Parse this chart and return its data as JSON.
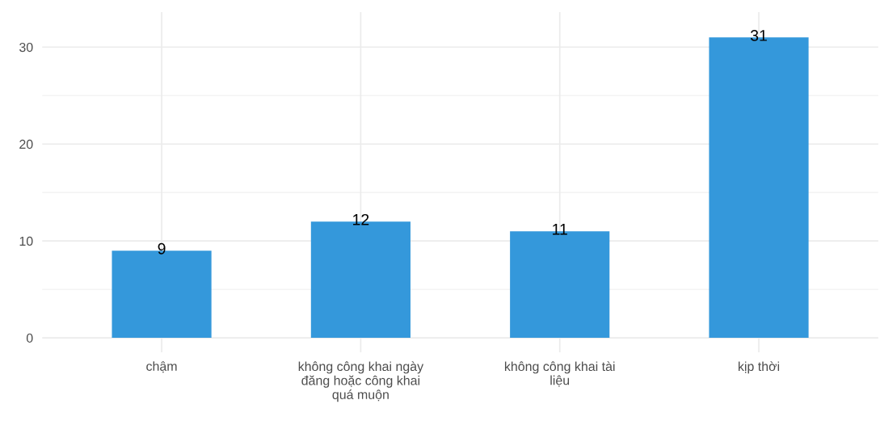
{
  "chart_data": {
    "type": "bar",
    "categories": [
      "chậm",
      "không công khai ngày đăng hoặc công khai quá muộn",
      "không công khai tài liệu",
      "kịp thời"
    ],
    "values": [
      9,
      12,
      11,
      31
    ],
    "color": "#3498db",
    "ylim": [
      -1.5,
      33.6
    ],
    "yticks": [
      0,
      {
        "value": 5,
        "label": null
      },
      10,
      {
        "value": 15,
        "label": null
      },
      20,
      {
        "value": 25,
        "label": null
      },
      30
    ],
    "grid": true,
    "data_labels": true
  }
}
